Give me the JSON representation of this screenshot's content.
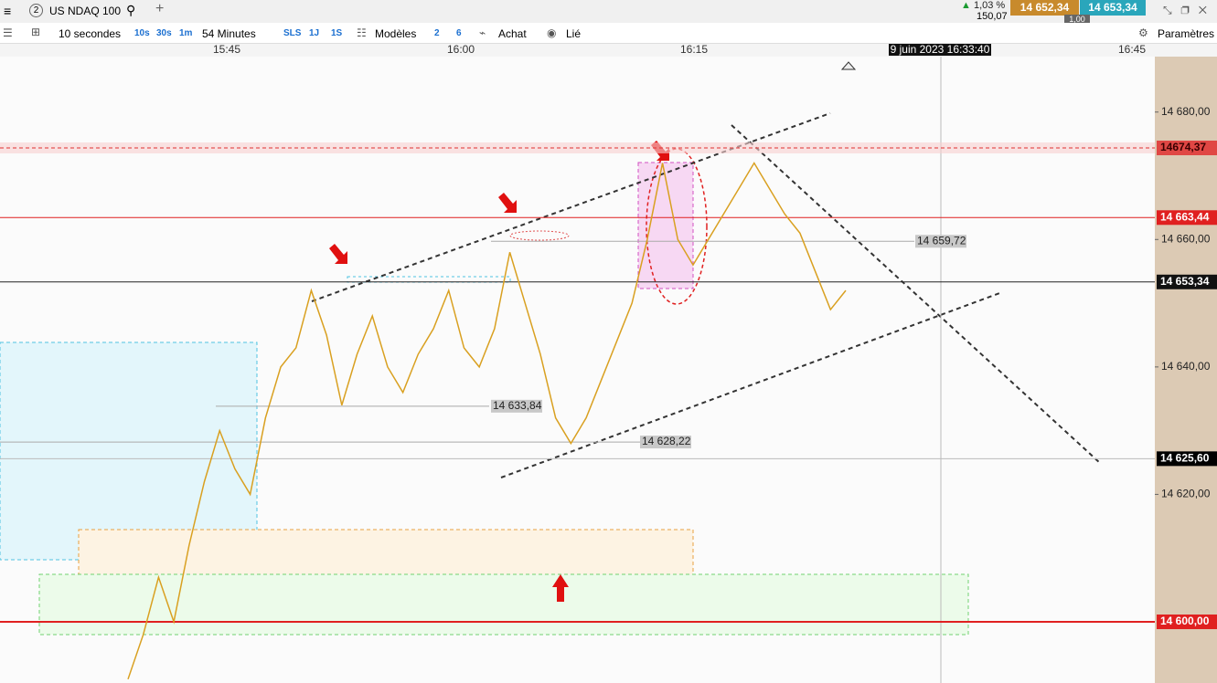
{
  "toolbar": {
    "tab_number": "2",
    "instrument": "US NDAQ 100",
    "change": "1,03 %",
    "change_points": "150,07",
    "sell": "14 652,34",
    "buy": "14 653,34",
    "spread": "1,00"
  },
  "menu": [
    "10 secondes",
    "10s",
    "30s",
    "1m",
    "54 Minutes",
    "SLS",
    "1J",
    "1S",
    "Modèles",
    "2",
    "6",
    "Achat",
    "Lié",
    "Paramètres"
  ],
  "chart_data": {
    "type": "line",
    "x_labels": [
      "15:45",
      "16:00",
      "16:15",
      "16:45"
    ],
    "cursor_time": "9 juin 2023 16:33:40",
    "color": "#d9a020",
    "values": [
      14591,
      14598,
      14607,
      14600,
      14612,
      14622,
      14630,
      14624,
      14620,
      14632,
      14640,
      14643,
      14652,
      14645,
      14634,
      14642,
      14648,
      14640,
      14636,
      14642,
      14646,
      14652,
      14643,
      14640,
      14646,
      14658,
      14650,
      14642,
      14632,
      14628,
      14632,
      14638,
      14644,
      14650,
      14660,
      14672,
      14660,
      14656,
      14660,
      14664,
      14668,
      14672,
      14668,
      14664,
      14661,
      14655,
      14649,
      14652
    ],
    "ylim": [
      14590.4,
      14688.7
    ],
    "yticks": [
      {
        "value": 14620,
        "label": "14 620,00"
      },
      {
        "value": 14640,
        "label": "14 640,00"
      },
      {
        "value": 14660,
        "label": "14 660,00"
      },
      {
        "value": 14680,
        "label": "14 680,00"
      }
    ],
    "levels": [
      {
        "value": 14674.37,
        "label": "14674,37",
        "color": "#e03030",
        "line_color": "#e03030",
        "text_color": "#3a0000",
        "dashed": true
      },
      {
        "value": 14663.44,
        "label": "14 663,44",
        "color": "#e02020",
        "line_color": "#e02020",
        "text_color": "#ffffff"
      },
      {
        "value": 14653.34,
        "label": "14 653,34",
        "color": "#111111",
        "line_color": "#222222",
        "text_color": "#ffffff"
      },
      {
        "value": 14625.6,
        "label": "14 625,60",
        "color": "#000000",
        "line_color": "#bbbbbb",
        "text_color": "#ffffff"
      },
      {
        "value": 14600,
        "label": "14 600,00",
        "color": "#e02020",
        "line_color": "#e02020",
        "text_color": "#ffffff"
      }
    ],
    "annotations": [
      {
        "value": 14659.72,
        "label": "14 659,72"
      },
      {
        "value": 14633.84,
        "label": "14 633,84"
      },
      {
        "value": 14628.22,
        "label": "14 628,22"
      }
    ]
  }
}
